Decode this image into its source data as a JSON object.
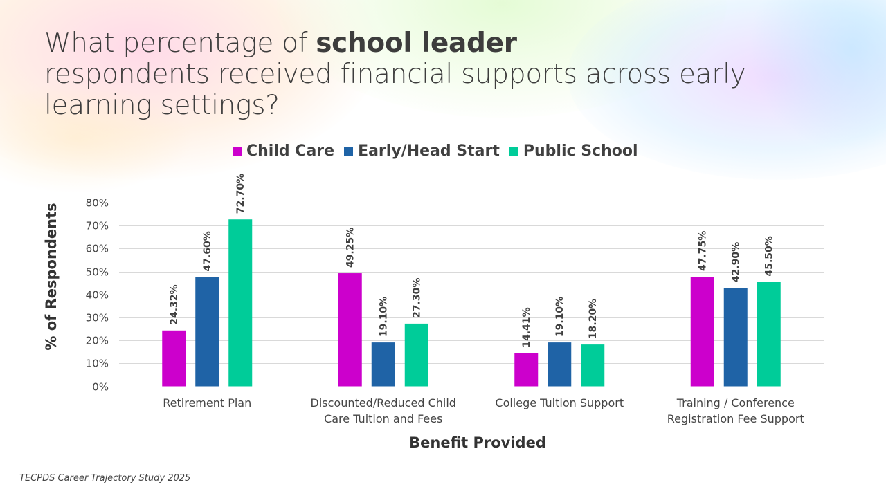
{
  "slide": {
    "title_parts": {
      "pre": "What percentage of ",
      "bold": "school leader",
      "post": "respondents received financial supports across early learning settings?"
    },
    "source_note": "TECPDS Career Trajectory Study 2025"
  },
  "chart_data": {
    "type": "bar",
    "title": "What percentage of school leader respondents received financial supports across early learning settings?",
    "xlabel": "Benefit Provided",
    "ylabel": "% of Respondents",
    "ylim": [
      0,
      80
    ],
    "yticks": [
      0,
      10,
      20,
      30,
      40,
      50,
      60,
      70,
      80
    ],
    "ytick_labels": [
      "0%",
      "10%",
      "20%",
      "30%",
      "40%",
      "50%",
      "60%",
      "70%",
      "80%"
    ],
    "grid": true,
    "legend_position": "top-center",
    "categories": [
      [
        "Retirement Plan"
      ],
      [
        "Discounted/Reduced Child",
        "Care Tuition and Fees"
      ],
      [
        "College Tuition Support"
      ],
      [
        "Training / Conference",
        "Registration Fee Support"
      ]
    ],
    "series": [
      {
        "name": "Child Care",
        "color": "#CC00CC",
        "values": [
          24.32,
          49.25,
          14.41,
          47.75
        ],
        "labels": [
          "24.32%",
          "49.25%",
          "14.41%",
          "47.75%"
        ]
      },
      {
        "name": "Early/Head Start",
        "color": "#1F63A6",
        "values": [
          47.6,
          19.1,
          19.1,
          42.9
        ],
        "labels": [
          "47.60%",
          "19.10%",
          "19.10%",
          "42.90%"
        ]
      },
      {
        "name": "Public School",
        "color": "#00CC99",
        "values": [
          72.7,
          27.3,
          18.2,
          45.5
        ],
        "labels": [
          "72.70%",
          "27.30%",
          "18.20%",
          "45.50%"
        ]
      }
    ]
  }
}
